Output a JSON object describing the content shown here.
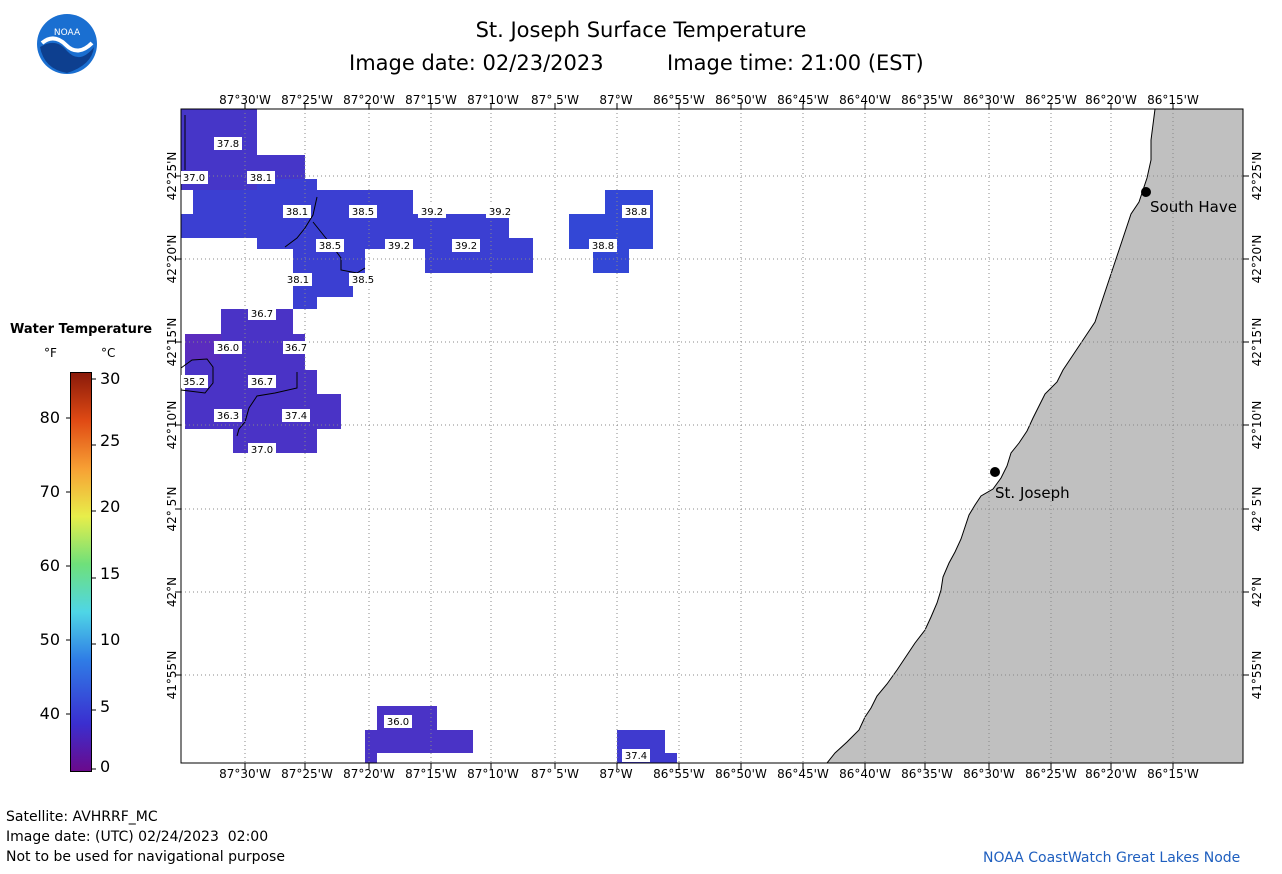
{
  "header": {
    "title": "St. Joseph Surface Temperature",
    "image_date_label": "Image date: 02/23/2023",
    "image_time_label": "Image time: 21:00 (EST)",
    "logo_text": "NOAA"
  },
  "map": {
    "lon_labels": [
      "87°30'W",
      "87°25'W",
      "87°20'W",
      "87°15'W",
      "87°10'W",
      "87° 5'W",
      "87°W",
      "86°55'W",
      "86°50'W",
      "86°45'W",
      "86°40'W",
      "86°35'W",
      "86°30'W",
      "86°25'W",
      "86°20'W",
      "86°15'W"
    ],
    "lat_labels": [
      "42°25'N",
      "42°20'N",
      "42°15'N",
      "42°10'N",
      "42° 5'N",
      "42°N",
      "41°55'N"
    ],
    "cities": [
      {
        "name": "South Have"
      },
      {
        "name": "St. Joseph"
      }
    ],
    "temperature_labels": [
      "37.8",
      "37.0",
      "38.1",
      "38.1",
      "38.5",
      "39.2",
      "39.2",
      "38.8",
      "38.5",
      "39.2",
      "39.2",
      "38.8",
      "38.1",
      "38.5",
      "36.7",
      "36.0",
      "36.7",
      "35.2",
      "36.7",
      "36.3",
      "37.4",
      "37.0",
      "36.0",
      "37.4"
    ],
    "colors": {
      "water_cold": "#4b2fc9",
      "water_mid": "#3347d6",
      "land": "#c0c0c0",
      "grid": "#888888"
    }
  },
  "legend": {
    "title": "Water Temperature",
    "unit_f": "°F",
    "unit_c": "°C",
    "f_ticks": [
      "80",
      "70",
      "60",
      "50",
      "40"
    ],
    "c_ticks": [
      "30",
      "25",
      "20",
      "15",
      "10",
      "5",
      "0"
    ]
  },
  "footer": {
    "satellite": "Satellite: AVHRRF_MC",
    "utc_date": "Image date: (UTC) 02/24/2023  02:00",
    "disclaimer": "Not to be used for navigational purpose",
    "credit": "NOAA CoastWatch Great Lakes Node"
  }
}
